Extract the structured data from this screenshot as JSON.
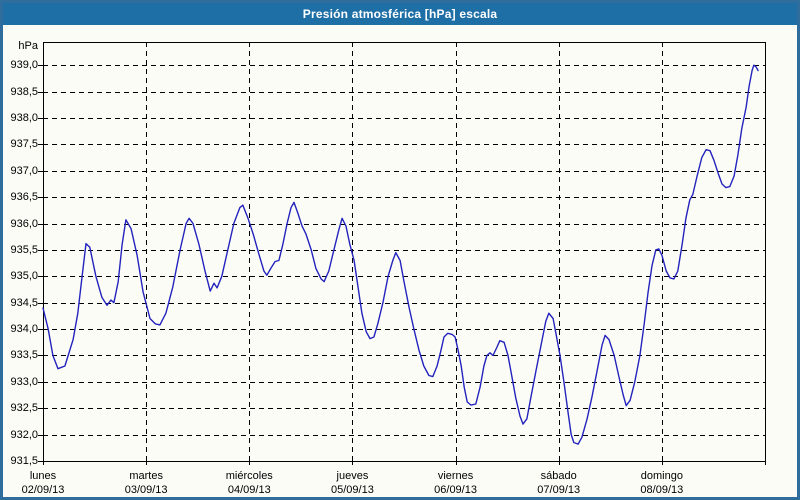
{
  "window": {
    "title": "Presión atmosférica [hPa] escala"
  },
  "colors": {
    "frame_border": "#2e6d9c",
    "titlebar_bg": "#1f6fa7",
    "titlebar_text": "#ffffff",
    "background": "#fcfcf7",
    "plot_border": "#000000",
    "gridline": "#000000",
    "series_line": "#2323bd",
    "label_text": "#000000"
  },
  "chart_data": {
    "type": "line",
    "title": "Presión atmosférica [hPa] escala",
    "ylabel": "hPa",
    "xlabel": "",
    "grid": true,
    "legend": false,
    "ylim": [
      931.5,
      939.44
    ],
    "xlim": [
      0,
      168
    ],
    "x_unit": "hours from Monday 02/09/13 00:00",
    "yticks": [
      939.0,
      938.5,
      938.0,
      937.5,
      937.0,
      936.5,
      936.0,
      935.5,
      935.0,
      934.5,
      934.0,
      933.5,
      933.0,
      932.5,
      932.0,
      931.5
    ],
    "ytick_labels": [
      "939,0",
      "938,5",
      "938,0",
      "937,5",
      "937,0",
      "936,5",
      "936,0",
      "935,5",
      "935,0",
      "934,5",
      "934,0",
      "933,5",
      "933,0",
      "932,5",
      "932,0",
      "931,5"
    ],
    "days": [
      {
        "name": "lunes",
        "date": "02/09/13",
        "start_hour": 0
      },
      {
        "name": "martes",
        "date": "03/09/13",
        "start_hour": 24
      },
      {
        "name": "miércoles",
        "date": "04/09/13",
        "start_hour": 48
      },
      {
        "name": "jueves",
        "date": "05/09/13",
        "start_hour": 72
      },
      {
        "name": "viernes",
        "date": "06/09/13",
        "start_hour": 96
      },
      {
        "name": "sábado",
        "date": "07/09/13",
        "start_hour": 120
      },
      {
        "name": "domingo",
        "date": "08/09/13",
        "start_hour": 144
      }
    ],
    "series": [
      {
        "name": "Presión atmosférica",
        "points": [
          [
            0,
            934.4
          ],
          [
            1.2,
            934.0
          ],
          [
            2.3,
            933.5
          ],
          [
            3.5,
            933.25
          ],
          [
            5.1,
            933.3
          ],
          [
            7,
            933.8
          ],
          [
            8.1,
            934.3
          ],
          [
            9.1,
            935.0
          ],
          [
            10,
            935.62
          ],
          [
            10.9,
            935.55
          ],
          [
            12.3,
            935.0
          ],
          [
            13.7,
            934.6
          ],
          [
            14.9,
            934.45
          ],
          [
            15.8,
            934.55
          ],
          [
            16.5,
            934.5
          ],
          [
            17.5,
            934.9
          ],
          [
            18.4,
            935.6
          ],
          [
            19.3,
            936.07
          ],
          [
            20.5,
            935.9
          ],
          [
            21.9,
            935.4
          ],
          [
            23.3,
            934.7
          ],
          [
            24.9,
            934.2
          ],
          [
            26.1,
            934.1
          ],
          [
            27.2,
            934.08
          ],
          [
            28.6,
            934.3
          ],
          [
            30.2,
            934.8
          ],
          [
            31.9,
            935.5
          ],
          [
            33.3,
            936.0
          ],
          [
            34,
            936.1
          ],
          [
            34.9,
            936.0
          ],
          [
            36.3,
            935.6
          ],
          [
            37.7,
            935.1
          ],
          [
            38.9,
            934.72
          ],
          [
            39.8,
            934.87
          ],
          [
            40.5,
            934.78
          ],
          [
            41.6,
            935.0
          ],
          [
            43,
            935.5
          ],
          [
            44.4,
            936.0
          ],
          [
            45.8,
            936.3
          ],
          [
            46.5,
            936.35
          ],
          [
            47.7,
            936.1
          ],
          [
            48.9,
            935.8
          ],
          [
            50.3,
            935.4
          ],
          [
            51.4,
            935.1
          ],
          [
            52.1,
            935.02
          ],
          [
            53,
            935.15
          ],
          [
            54,
            935.28
          ],
          [
            54.9,
            935.3
          ],
          [
            55.8,
            935.6
          ],
          [
            56.8,
            936.0
          ],
          [
            57.7,
            936.3
          ],
          [
            58.4,
            936.4
          ],
          [
            59.3,
            936.2
          ],
          [
            60.3,
            935.95
          ],
          [
            61.2,
            935.8
          ],
          [
            62.4,
            935.5
          ],
          [
            63.5,
            935.15
          ],
          [
            64.7,
            934.95
          ],
          [
            65.4,
            934.9
          ],
          [
            66.5,
            935.1
          ],
          [
            67.7,
            935.5
          ],
          [
            68.9,
            935.9
          ],
          [
            69.6,
            936.1
          ],
          [
            70.5,
            935.95
          ],
          [
            71.4,
            935.6
          ],
          [
            72.4,
            935.3
          ],
          [
            73.3,
            934.8
          ],
          [
            74.2,
            934.3
          ],
          [
            75.2,
            933.95
          ],
          [
            76.1,
            933.82
          ],
          [
            77,
            933.85
          ],
          [
            77.9,
            934.1
          ],
          [
            79.1,
            934.5
          ],
          [
            80.3,
            935.0
          ],
          [
            81.4,
            935.3
          ],
          [
            82.1,
            935.45
          ],
          [
            83.1,
            935.3
          ],
          [
            84,
            934.9
          ],
          [
            85.2,
            934.4
          ],
          [
            86.3,
            934.0
          ],
          [
            87.5,
            933.6
          ],
          [
            88.6,
            933.3
          ],
          [
            89.8,
            933.12
          ],
          [
            90.7,
            933.1
          ],
          [
            91.7,
            933.3
          ],
          [
            92.6,
            933.6
          ],
          [
            93.3,
            933.85
          ],
          [
            94.2,
            933.92
          ],
          [
            95.2,
            933.9
          ],
          [
            95.9,
            933.85
          ],
          [
            96.6,
            933.6
          ],
          [
            97.3,
            933.3
          ],
          [
            98,
            932.9
          ],
          [
            98.7,
            932.62
          ],
          [
            99.6,
            932.56
          ],
          [
            100.7,
            932.58
          ],
          [
            101.7,
            932.9
          ],
          [
            102.6,
            933.3
          ],
          [
            103.3,
            933.5
          ],
          [
            104,
            933.55
          ],
          [
            104.7,
            933.5
          ],
          [
            105.6,
            933.65
          ],
          [
            106.3,
            933.78
          ],
          [
            107.3,
            933.75
          ],
          [
            108.2,
            933.5
          ],
          [
            109.1,
            933.1
          ],
          [
            110,
            932.7
          ],
          [
            111,
            932.35
          ],
          [
            111.7,
            932.2
          ],
          [
            112.6,
            932.3
          ],
          [
            113.5,
            932.7
          ],
          [
            114.7,
            933.2
          ],
          [
            115.9,
            933.7
          ],
          [
            117,
            934.15
          ],
          [
            117.7,
            934.3
          ],
          [
            118.7,
            934.2
          ],
          [
            119.4,
            933.9
          ],
          [
            120.3,
            933.5
          ],
          [
            121.2,
            933.0
          ],
          [
            122.2,
            932.4
          ],
          [
            122.9,
            932.0
          ],
          [
            123.5,
            931.85
          ],
          [
            124.5,
            931.82
          ],
          [
            125.4,
            931.95
          ],
          [
            126.6,
            932.3
          ],
          [
            127.7,
            932.7
          ],
          [
            128.9,
            933.2
          ],
          [
            130.1,
            933.7
          ],
          [
            130.8,
            933.88
          ],
          [
            131.7,
            933.8
          ],
          [
            132.9,
            933.5
          ],
          [
            134,
            933.1
          ],
          [
            135,
            932.75
          ],
          [
            135.7,
            932.55
          ],
          [
            136.6,
            932.65
          ],
          [
            137.7,
            933.0
          ],
          [
            138.9,
            933.5
          ],
          [
            139.9,
            934.1
          ],
          [
            140.8,
            934.7
          ],
          [
            141.7,
            935.2
          ],
          [
            142.6,
            935.5
          ],
          [
            143.3,
            935.52
          ],
          [
            144,
            935.4
          ],
          [
            145,
            935.1
          ],
          [
            145.9,
            934.97
          ],
          [
            146.8,
            934.95
          ],
          [
            147.7,
            935.1
          ],
          [
            148.7,
            935.6
          ],
          [
            149.6,
            936.1
          ],
          [
            150.5,
            936.45
          ],
          [
            151.2,
            936.55
          ],
          [
            152.2,
            936.9
          ],
          [
            153.3,
            937.25
          ],
          [
            154.3,
            937.4
          ],
          [
            155.2,
            937.38
          ],
          [
            156.1,
            937.2
          ],
          [
            157.1,
            936.95
          ],
          [
            158,
            936.75
          ],
          [
            158.9,
            936.68
          ],
          [
            159.8,
            936.7
          ],
          [
            160.8,
            936.9
          ],
          [
            161.7,
            937.3
          ],
          [
            162.6,
            937.8
          ],
          [
            163.6,
            938.2
          ],
          [
            164.3,
            938.6
          ],
          [
            165,
            938.9
          ],
          [
            165.4,
            939.0
          ],
          [
            165.9,
            938.97
          ],
          [
            166.4,
            938.9
          ]
        ]
      }
    ]
  }
}
